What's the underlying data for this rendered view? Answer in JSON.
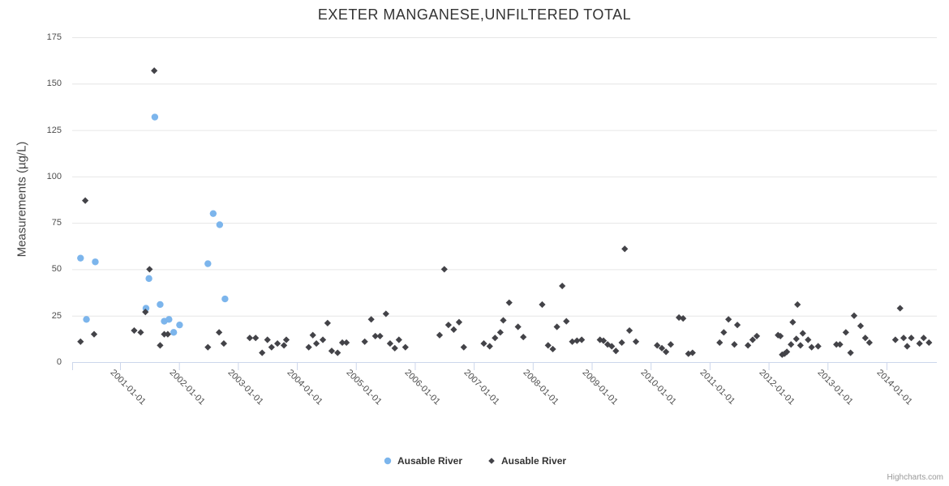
{
  "credit": "Highcharts.com",
  "chart_data": {
    "type": "scatter",
    "title": "EXETER MANGANESE,UNFILTERED TOTAL",
    "xlabel": "",
    "ylabel": "Measurements (µg/L)",
    "ylim": [
      0,
      175
    ],
    "y_ticks": [
      0,
      25,
      50,
      75,
      100,
      125,
      150,
      175
    ],
    "x_tick_labels": [
      "2001-01-01",
      "2002-01-01",
      "2003-01-01",
      "2004-01-01",
      "2005-01-01",
      "2006-01-01",
      "2007-01-01",
      "2008-01-01",
      "2009-01-01",
      "2010-01-01",
      "2011-01-01",
      "2012-01-01",
      "2013-01-01",
      "2014-01-01"
    ],
    "grid": "horizontal-only",
    "legend_position": "bottom-center",
    "grid_color": "#e6e6e6",
    "axis_line_color": "#ccd6eb",
    "series": [
      {
        "name": "Ausable River",
        "marker": "circle",
        "color": "#7cb5ec",
        "points": [
          [
            2000.33,
            56
          ],
          [
            2000.43,
            23
          ],
          [
            2000.58,
            54
          ],
          [
            2001.44,
            29
          ],
          [
            2001.49,
            45
          ],
          [
            2001.59,
            132
          ],
          [
            2001.68,
            31
          ],
          [
            2001.75,
            22
          ],
          [
            2001.83,
            23
          ],
          [
            2001.91,
            16
          ],
          [
            2002.01,
            20
          ],
          [
            2002.49,
            53
          ],
          [
            2002.58,
            80
          ],
          [
            2002.69,
            74
          ],
          [
            2002.78,
            34
          ]
        ]
      },
      {
        "name": "Ausable River",
        "marker": "diamond",
        "color": "#434348",
        "points": [
          [
            2000.33,
            11
          ],
          [
            2000.41,
            87
          ],
          [
            2000.56,
            15
          ],
          [
            2001.24,
            17
          ],
          [
            2001.35,
            16
          ],
          [
            2001.43,
            27
          ],
          [
            2001.5,
            50
          ],
          [
            2001.58,
            157
          ],
          [
            2001.68,
            9
          ],
          [
            2001.75,
            15
          ],
          [
            2001.81,
            15
          ],
          [
            2002.49,
            8
          ],
          [
            2002.68,
            16
          ],
          [
            2002.76,
            10
          ],
          [
            2003.2,
            13
          ],
          [
            2003.3,
            13
          ],
          [
            2003.41,
            5
          ],
          [
            2003.5,
            12
          ],
          [
            2003.57,
            8
          ],
          [
            2003.67,
            10
          ],
          [
            2003.78,
            9
          ],
          [
            2003.82,
            12
          ],
          [
            2004.2,
            8
          ],
          [
            2004.27,
            14.5
          ],
          [
            2004.33,
            10
          ],
          [
            2004.44,
            12
          ],
          [
            2004.52,
            21
          ],
          [
            2004.59,
            6
          ],
          [
            2004.69,
            5
          ],
          [
            2004.77,
            10.5
          ],
          [
            2004.84,
            10.5
          ],
          [
            2005.15,
            11
          ],
          [
            2005.26,
            23
          ],
          [
            2005.33,
            14
          ],
          [
            2005.41,
            14
          ],
          [
            2005.51,
            26
          ],
          [
            2005.58,
            10
          ],
          [
            2005.66,
            7.5
          ],
          [
            2005.73,
            12
          ],
          [
            2005.84,
            8
          ],
          [
            2006.42,
            14.5
          ],
          [
            2006.5,
            50
          ],
          [
            2006.57,
            20
          ],
          [
            2006.66,
            17.5
          ],
          [
            2006.75,
            21.5
          ],
          [
            2006.83,
            8
          ],
          [
            2007.17,
            10
          ],
          [
            2007.27,
            8.5
          ],
          [
            2007.36,
            13
          ],
          [
            2007.45,
            16
          ],
          [
            2007.5,
            22.5
          ],
          [
            2007.6,
            32
          ],
          [
            2007.75,
            19
          ],
          [
            2007.84,
            13.5
          ],
          [
            2008.16,
            31
          ],
          [
            2008.26,
            9
          ],
          [
            2008.34,
            7
          ],
          [
            2008.41,
            19
          ],
          [
            2008.5,
            41
          ],
          [
            2008.57,
            22
          ],
          [
            2008.67,
            11
          ],
          [
            2008.75,
            11.5
          ],
          [
            2008.83,
            12
          ],
          [
            2009.14,
            12
          ],
          [
            2009.2,
            11.5
          ],
          [
            2009.27,
            9.5
          ],
          [
            2009.34,
            8.5
          ],
          [
            2009.41,
            6
          ],
          [
            2009.51,
            10.5
          ],
          [
            2009.56,
            61
          ],
          [
            2009.64,
            17
          ],
          [
            2009.75,
            11
          ],
          [
            2010.11,
            9
          ],
          [
            2010.19,
            7.5
          ],
          [
            2010.26,
            5.5
          ],
          [
            2010.34,
            9.5
          ],
          [
            2010.48,
            24
          ],
          [
            2010.55,
            23.5
          ],
          [
            2010.64,
            4.5
          ],
          [
            2010.71,
            5
          ],
          [
            2011.17,
            10.5
          ],
          [
            2011.24,
            16
          ],
          [
            2011.32,
            23
          ],
          [
            2011.42,
            9.5
          ],
          [
            2011.47,
            20
          ],
          [
            2011.65,
            9
          ],
          [
            2011.73,
            12
          ],
          [
            2011.8,
            14
          ],
          [
            2012.16,
            14.5
          ],
          [
            2012.2,
            14
          ],
          [
            2012.23,
            4
          ],
          [
            2012.27,
            4.5
          ],
          [
            2012.31,
            5.5
          ],
          [
            2012.38,
            9.5
          ],
          [
            2012.41,
            21.5
          ],
          [
            2012.47,
            12.5
          ],
          [
            2012.49,
            31
          ],
          [
            2012.54,
            9
          ],
          [
            2012.58,
            15.5
          ],
          [
            2012.67,
            12
          ],
          [
            2012.73,
            8
          ],
          [
            2012.84,
            8.5
          ],
          [
            2013.15,
            9.5
          ],
          [
            2013.21,
            9.5
          ],
          [
            2013.31,
            16
          ],
          [
            2013.39,
            5
          ],
          [
            2013.45,
            25
          ],
          [
            2013.56,
            19.5
          ],
          [
            2013.64,
            13
          ],
          [
            2013.71,
            10.5
          ],
          [
            2014.15,
            12
          ],
          [
            2014.23,
            29
          ],
          [
            2014.29,
            13
          ],
          [
            2014.35,
            8.5
          ],
          [
            2014.42,
            13
          ],
          [
            2014.56,
            10
          ],
          [
            2014.63,
            13
          ],
          [
            2014.72,
            10.5
          ]
        ]
      }
    ]
  }
}
